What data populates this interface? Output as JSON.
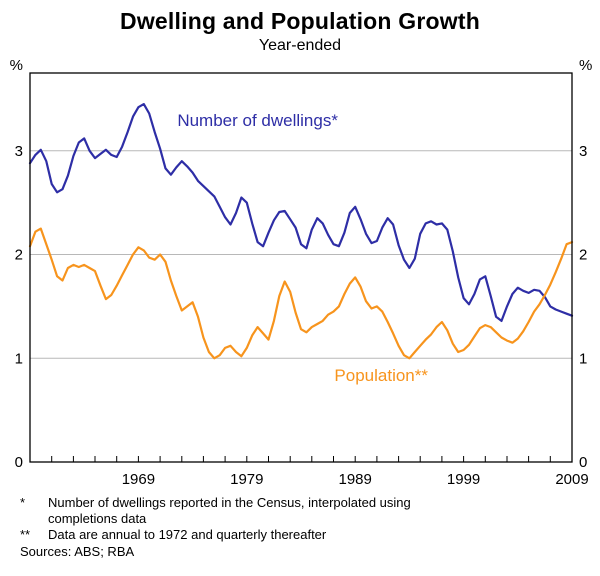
{
  "title": "Dwelling and Population Growth",
  "subtitle": "Year-ended",
  "footnotes": [
    {
      "marker": "*",
      "text": "Number of dwellings reported in the Census, interpolated using completions data"
    },
    {
      "marker": "**",
      "text": "Data are annual to 1972 and quarterly thereafter"
    }
  ],
  "sources": "Sources: ABS; RBA",
  "chart_data": {
    "type": "line",
    "title": "Dwelling and Population Growth",
    "subtitle": "Year-ended",
    "unit_label": "%",
    "x_range": [
      1959,
      2009
    ],
    "y_range": [
      0,
      3.75
    ],
    "y_ticks": [
      0,
      1,
      2,
      3
    ],
    "x_tick_labels": [
      1969,
      1979,
      1989,
      1999,
      2009
    ],
    "minor_tick_interval": 2,
    "gridlines": [
      1,
      2,
      3
    ],
    "grid_color": "#b8b8b8",
    "series": [
      {
        "id": "dwellings",
        "name": "Number of dwellings*",
        "color": "#2e2ea6",
        "points": [
          [
            1959,
            2.88
          ],
          [
            1959.5,
            2.96
          ],
          [
            1960,
            3.01
          ],
          [
            1960.5,
            2.9
          ],
          [
            1961,
            2.68
          ],
          [
            1961.5,
            2.6
          ],
          [
            1962,
            2.63
          ],
          [
            1962.5,
            2.76
          ],
          [
            1963,
            2.95
          ],
          [
            1963.5,
            3.08
          ],
          [
            1964,
            3.12
          ],
          [
            1964.5,
            3.0
          ],
          [
            1965,
            2.93
          ],
          [
            1965.5,
            2.97
          ],
          [
            1966,
            3.01
          ],
          [
            1966.5,
            2.96
          ],
          [
            1967,
            2.94
          ],
          [
            1967.5,
            3.04
          ],
          [
            1968,
            3.18
          ],
          [
            1968.5,
            3.33
          ],
          [
            1969,
            3.42
          ],
          [
            1969.5,
            3.45
          ],
          [
            1970,
            3.36
          ],
          [
            1970.5,
            3.18
          ],
          [
            1971,
            3.02
          ],
          [
            1971.5,
            2.83
          ],
          [
            1972,
            2.77
          ],
          [
            1972.5,
            2.84
          ],
          [
            1973,
            2.9
          ],
          [
            1973.5,
            2.85
          ],
          [
            1974,
            2.79
          ],
          [
            1974.5,
            2.71
          ],
          [
            1975,
            2.66
          ],
          [
            1975.5,
            2.61
          ],
          [
            1976,
            2.56
          ],
          [
            1976.5,
            2.46
          ],
          [
            1977,
            2.36
          ],
          [
            1977.5,
            2.29
          ],
          [
            1978,
            2.4
          ],
          [
            1978.5,
            2.55
          ],
          [
            1979,
            2.5
          ],
          [
            1979.5,
            2.3
          ],
          [
            1980,
            2.12
          ],
          [
            1980.5,
            2.08
          ],
          [
            1981,
            2.21
          ],
          [
            1981.5,
            2.33
          ],
          [
            1982,
            2.41
          ],
          [
            1982.5,
            2.42
          ],
          [
            1983,
            2.34
          ],
          [
            1983.5,
            2.26
          ],
          [
            1984,
            2.1
          ],
          [
            1984.5,
            2.06
          ],
          [
            1985,
            2.24
          ],
          [
            1985.5,
            2.35
          ],
          [
            1986,
            2.3
          ],
          [
            1986.5,
            2.19
          ],
          [
            1987,
            2.1
          ],
          [
            1987.5,
            2.08
          ],
          [
            1988,
            2.21
          ],
          [
            1988.5,
            2.4
          ],
          [
            1989,
            2.46
          ],
          [
            1989.5,
            2.34
          ],
          [
            1990,
            2.2
          ],
          [
            1990.5,
            2.11
          ],
          [
            1991,
            2.13
          ],
          [
            1991.5,
            2.26
          ],
          [
            1992,
            2.35
          ],
          [
            1992.5,
            2.29
          ],
          [
            1993,
            2.09
          ],
          [
            1993.5,
            1.95
          ],
          [
            1994,
            1.87
          ],
          [
            1994.5,
            1.96
          ],
          [
            1995,
            2.2
          ],
          [
            1995.5,
            2.3
          ],
          [
            1996,
            2.32
          ],
          [
            1996.5,
            2.29
          ],
          [
            1997,
            2.3
          ],
          [
            1997.5,
            2.24
          ],
          [
            1998,
            2.03
          ],
          [
            1998.5,
            1.78
          ],
          [
            1999,
            1.58
          ],
          [
            1999.5,
            1.52
          ],
          [
            2000,
            1.62
          ],
          [
            2000.5,
            1.76
          ],
          [
            2001,
            1.79
          ],
          [
            2001.5,
            1.6
          ],
          [
            2002,
            1.4
          ],
          [
            2002.5,
            1.36
          ],
          [
            2003,
            1.5
          ],
          [
            2003.5,
            1.62
          ],
          [
            2004,
            1.68
          ],
          [
            2004.5,
            1.65
          ],
          [
            2005,
            1.63
          ],
          [
            2005.5,
            1.66
          ],
          [
            2006,
            1.65
          ],
          [
            2006.5,
            1.59
          ],
          [
            2007,
            1.5
          ],
          [
            2007.5,
            1.47
          ],
          [
            2008,
            1.45
          ],
          [
            2008.5,
            1.43
          ],
          [
            2009,
            1.41
          ]
        ]
      },
      {
        "id": "population",
        "name": "Population**",
        "color": "#f7941d",
        "points": [
          [
            1959,
            2.08
          ],
          [
            1959.5,
            2.22
          ],
          [
            1960,
            2.25
          ],
          [
            1960.5,
            2.1
          ],
          [
            1961,
            1.95
          ],
          [
            1961.5,
            1.79
          ],
          [
            1962,
            1.75
          ],
          [
            1962.5,
            1.87
          ],
          [
            1963,
            1.9
          ],
          [
            1963.5,
            1.88
          ],
          [
            1964,
            1.9
          ],
          [
            1964.5,
            1.87
          ],
          [
            1965,
            1.84
          ],
          [
            1965.5,
            1.7
          ],
          [
            1966,
            1.57
          ],
          [
            1966.5,
            1.61
          ],
          [
            1967,
            1.7
          ],
          [
            1967.5,
            1.8
          ],
          [
            1968,
            1.9
          ],
          [
            1968.5,
            2.0
          ],
          [
            1969,
            2.07
          ],
          [
            1969.5,
            2.04
          ],
          [
            1970,
            1.97
          ],
          [
            1970.5,
            1.95
          ],
          [
            1971,
            2.0
          ],
          [
            1971.5,
            1.93
          ],
          [
            1972,
            1.75
          ],
          [
            1972.5,
            1.6
          ],
          [
            1973,
            1.46
          ],
          [
            1973.5,
            1.5
          ],
          [
            1974,
            1.54
          ],
          [
            1974.5,
            1.4
          ],
          [
            1975,
            1.2
          ],
          [
            1975.5,
            1.06
          ],
          [
            1976,
            1.0
          ],
          [
            1976.5,
            1.03
          ],
          [
            1977,
            1.1
          ],
          [
            1977.5,
            1.12
          ],
          [
            1978,
            1.06
          ],
          [
            1978.5,
            1.02
          ],
          [
            1979,
            1.1
          ],
          [
            1979.5,
            1.22
          ],
          [
            1980,
            1.3
          ],
          [
            1980.5,
            1.24
          ],
          [
            1981,
            1.18
          ],
          [
            1981.5,
            1.36
          ],
          [
            1982,
            1.6
          ],
          [
            1982.5,
            1.74
          ],
          [
            1983,
            1.64
          ],
          [
            1983.5,
            1.44
          ],
          [
            1984,
            1.28
          ],
          [
            1984.5,
            1.25
          ],
          [
            1985,
            1.3
          ],
          [
            1985.5,
            1.33
          ],
          [
            1986,
            1.36
          ],
          [
            1986.5,
            1.42
          ],
          [
            1987,
            1.45
          ],
          [
            1987.5,
            1.5
          ],
          [
            1988,
            1.62
          ],
          [
            1988.5,
            1.72
          ],
          [
            1989,
            1.78
          ],
          [
            1989.5,
            1.69
          ],
          [
            1990,
            1.55
          ],
          [
            1990.5,
            1.48
          ],
          [
            1991,
            1.5
          ],
          [
            1991.5,
            1.45
          ],
          [
            1992,
            1.35
          ],
          [
            1992.5,
            1.24
          ],
          [
            1993,
            1.12
          ],
          [
            1993.5,
            1.03
          ],
          [
            1994,
            1.0
          ],
          [
            1994.5,
            1.06
          ],
          [
            1995,
            1.12
          ],
          [
            1995.5,
            1.18
          ],
          [
            1996,
            1.23
          ],
          [
            1996.5,
            1.3
          ],
          [
            1997,
            1.35
          ],
          [
            1997.5,
            1.27
          ],
          [
            1998,
            1.14
          ],
          [
            1998.5,
            1.06
          ],
          [
            1999,
            1.08
          ],
          [
            1999.5,
            1.13
          ],
          [
            2000,
            1.21
          ],
          [
            2000.5,
            1.29
          ],
          [
            2001,
            1.32
          ],
          [
            2001.5,
            1.3
          ],
          [
            2002,
            1.25
          ],
          [
            2002.5,
            1.2
          ],
          [
            2003,
            1.17
          ],
          [
            2003.5,
            1.15
          ],
          [
            2004,
            1.19
          ],
          [
            2004.5,
            1.26
          ],
          [
            2005,
            1.35
          ],
          [
            2005.5,
            1.45
          ],
          [
            2006,
            1.52
          ],
          [
            2006.5,
            1.61
          ],
          [
            2007,
            1.71
          ],
          [
            2007.5,
            1.83
          ],
          [
            2008,
            1.96
          ],
          [
            2008.5,
            2.1
          ],
          [
            2009,
            2.12
          ]
        ]
      }
    ],
    "annotations": [
      {
        "text": "Number of dwellings*",
        "x": 1980,
        "y": 3.24,
        "color": "#2e2ea6"
      },
      {
        "text": "Population**",
        "x": 1991.4,
        "y": 0.78,
        "color": "#f7941d"
      }
    ]
  }
}
